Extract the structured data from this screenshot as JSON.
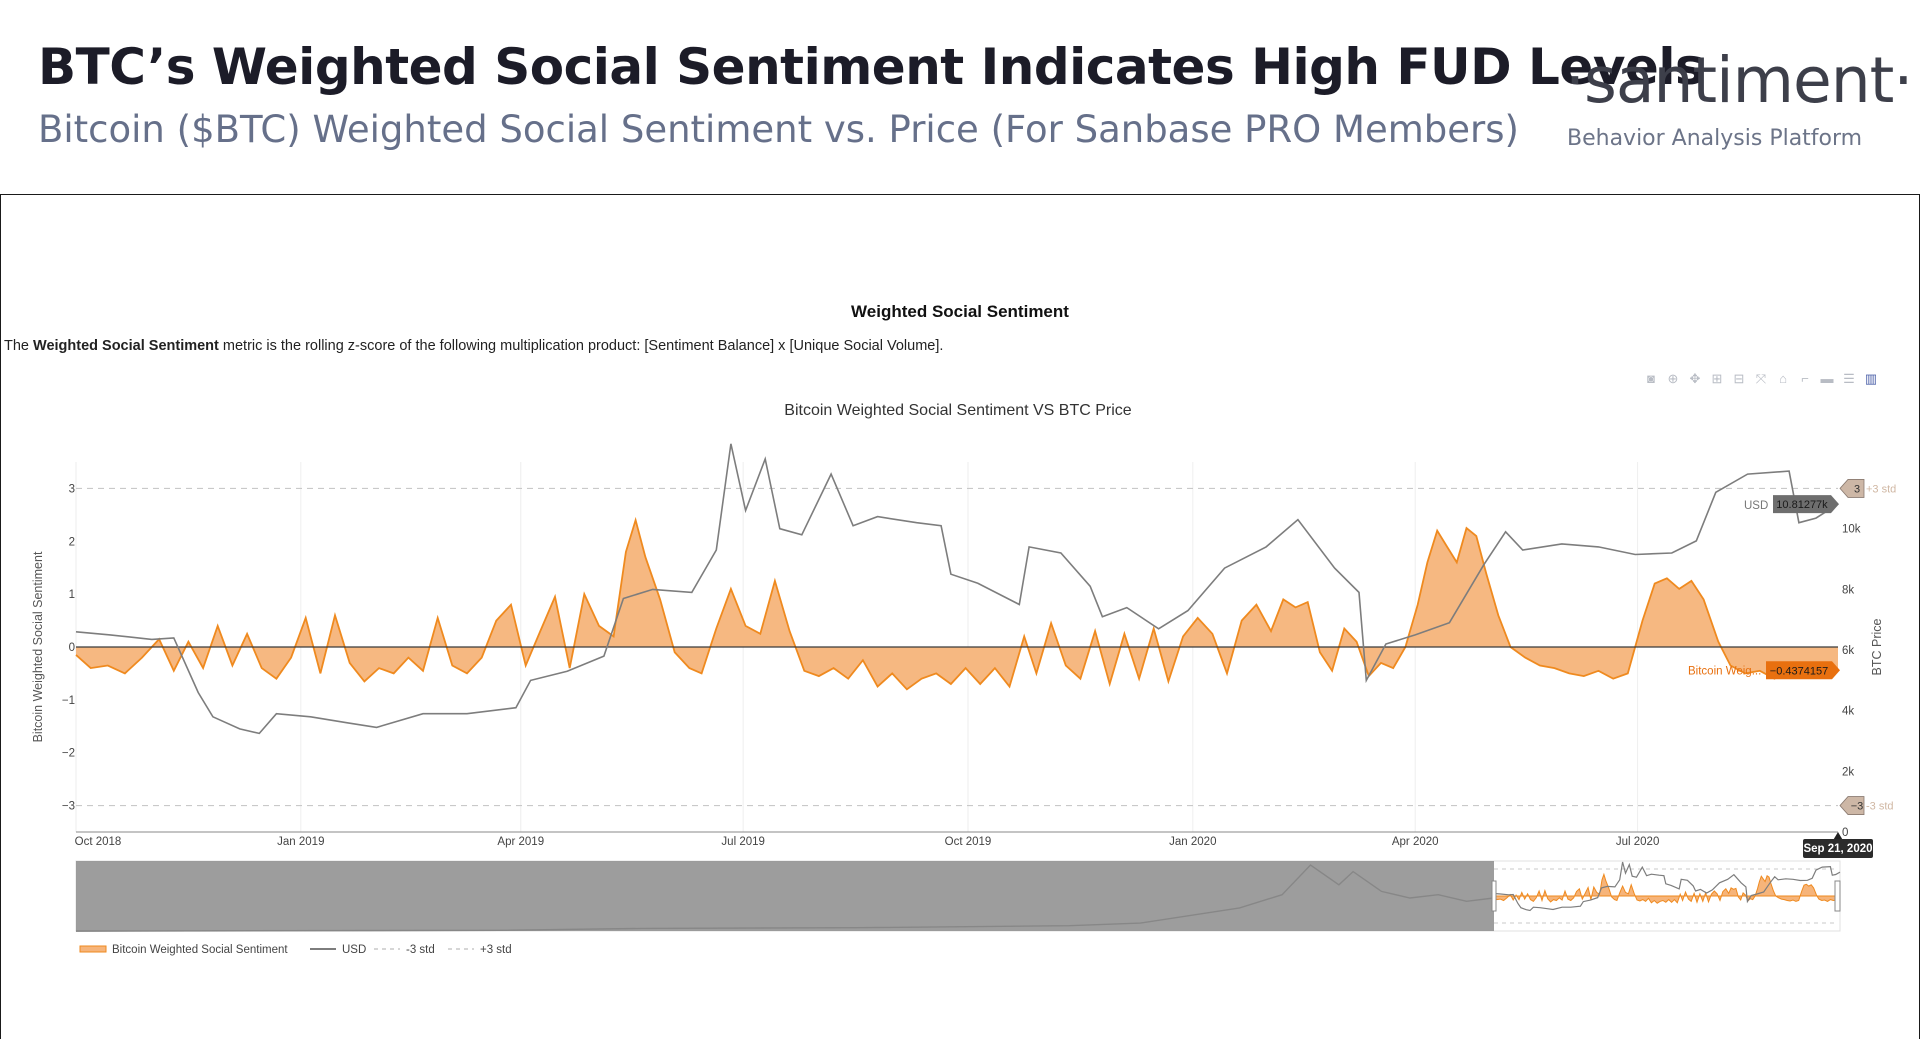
{
  "header": {
    "title": "BTC’s Weighted Social Sentiment Indicates High FUD Levels",
    "subtitle": "Bitcoin ($BTC) Weighted Social Sentiment vs. Price (For Sanbase PRO Members)",
    "logo": "·santiment·",
    "logo_tagline": "Behavior Analysis Platform"
  },
  "section": {
    "title": "Weighted Social Sentiment",
    "desc_prefix": "The ",
    "desc_bold": "Weighted Social Sentiment",
    "desc_rest": " metric is the rolling z-score of the following multiplication product: [Sentiment Balance] x [Unique Social Volume]."
  },
  "modebar": [
    {
      "icon": "camera-icon",
      "glyph": "◙"
    },
    {
      "icon": "zoom-icon",
      "glyph": "⊕"
    },
    {
      "icon": "pan-icon",
      "glyph": "✥"
    },
    {
      "icon": "zoom-in-icon",
      "glyph": "⊞"
    },
    {
      "icon": "zoom-out-icon",
      "glyph": "⊟"
    },
    {
      "icon": "autoscale-icon",
      "glyph": "⤧"
    },
    {
      "icon": "reset-axes-icon",
      "glyph": "⌂"
    },
    {
      "icon": "spike-lines-icon",
      "glyph": "⌐"
    },
    {
      "icon": "hover-closest-icon",
      "glyph": "▬"
    },
    {
      "icon": "hover-compare-icon",
      "glyph": "☰"
    },
    {
      "icon": "plotly-logo-icon",
      "glyph": "▥"
    }
  ],
  "colors": {
    "sentiment_fill": "#f6b47a",
    "sentiment_line": "#ef8a1f",
    "price_line": "#7d7d7d",
    "std_line": "#c9c9c9",
    "hover_price_bg": "#6e6e6e",
    "hover_sent_bg": "#e8700f",
    "title_text": "#1c1c28",
    "subtitle_text": "#66708a"
  },
  "chart_data": {
    "type": "line",
    "title": "Bitcoin Weighted Social Sentiment VS BTC Price",
    "ylabel": "Bitcoin Weighted Social Sentiment",
    "y2label": "BTC Price",
    "ylim": [
      -3.5,
      3.5
    ],
    "y2lim": [
      0,
      12200
    ],
    "yticks": [
      "3",
      "2",
      "1",
      "0",
      "−1",
      "−2",
      "−3"
    ],
    "y2ticks": [
      "10k",
      "8k",
      "6k",
      "4k",
      "2k",
      "0"
    ],
    "xticks": [
      "Oct 2018",
      "Jan 2019",
      "Apr 2019",
      "Jul 2019",
      "Oct 2019",
      "Jan 2020",
      "Apr 2020",
      "Jul 2020"
    ],
    "x_range": [
      "2018-10-01",
      "2020-09-21"
    ],
    "grid": true,
    "legend_position": "bottom-left",
    "std_lines": [
      {
        "name": "+3 std",
        "value": 3,
        "tag": "3",
        "label": "+3 std"
      },
      {
        "name": "-3 std",
        "value": -3,
        "tag": "−3",
        "label": "-3 std"
      }
    ],
    "hover": {
      "date": "Sep 21, 2020",
      "price_label": "USD",
      "price_value": "10.81277k",
      "sentiment_label": "Bitcoin Weig...",
      "sentiment_value": "−0.4374157"
    },
    "series": [
      {
        "name": "Bitcoin Weighted Social Sentiment",
        "points": [
          [
            "2018-10-01",
            -0.15
          ],
          [
            "2018-10-07",
            -0.4
          ],
          [
            "2018-10-14",
            -0.35
          ],
          [
            "2018-10-21",
            -0.5
          ],
          [
            "2018-10-28",
            -0.2
          ],
          [
            "2018-11-04",
            0.15
          ],
          [
            "2018-11-10",
            -0.45
          ],
          [
            "2018-11-16",
            0.1
          ],
          [
            "2018-11-22",
            -0.4
          ],
          [
            "2018-11-28",
            0.4
          ],
          [
            "2018-12-04",
            -0.35
          ],
          [
            "2018-12-10",
            0.25
          ],
          [
            "2018-12-16",
            -0.4
          ],
          [
            "2018-12-22",
            -0.6
          ],
          [
            "2018-12-28",
            -0.2
          ],
          [
            "2019-01-03",
            0.55
          ],
          [
            "2019-01-09",
            -0.5
          ],
          [
            "2019-01-15",
            0.6
          ],
          [
            "2019-01-21",
            -0.3
          ],
          [
            "2019-01-27",
            -0.65
          ],
          [
            "2019-02-02",
            -0.4
          ],
          [
            "2019-02-08",
            -0.5
          ],
          [
            "2019-02-14",
            -0.2
          ],
          [
            "2019-02-20",
            -0.45
          ],
          [
            "2019-02-26",
            0.55
          ],
          [
            "2019-03-04",
            -0.35
          ],
          [
            "2019-03-10",
            -0.5
          ],
          [
            "2019-03-16",
            -0.2
          ],
          [
            "2019-03-22",
            0.5
          ],
          [
            "2019-03-28",
            0.8
          ],
          [
            "2019-04-03",
            -0.35
          ],
          [
            "2019-04-09",
            0.3
          ],
          [
            "2019-04-15",
            0.95
          ],
          [
            "2019-04-21",
            -0.4
          ],
          [
            "2019-04-27",
            1.0
          ],
          [
            "2019-05-03",
            0.4
          ],
          [
            "2019-05-09",
            0.2
          ],
          [
            "2019-05-14",
            1.8
          ],
          [
            "2019-05-18",
            2.4
          ],
          [
            "2019-05-22",
            1.7
          ],
          [
            "2019-05-28",
            0.9
          ],
          [
            "2019-06-03",
            -0.1
          ],
          [
            "2019-06-09",
            -0.4
          ],
          [
            "2019-06-14",
            -0.5
          ],
          [
            "2019-06-20",
            0.35
          ],
          [
            "2019-06-26",
            1.1
          ],
          [
            "2019-07-02",
            0.4
          ],
          [
            "2019-07-08",
            0.25
          ],
          [
            "2019-07-14",
            1.25
          ],
          [
            "2019-07-20",
            0.3
          ],
          [
            "2019-07-26",
            -0.45
          ],
          [
            "2019-08-01",
            -0.55
          ],
          [
            "2019-08-07",
            -0.4
          ],
          [
            "2019-08-13",
            -0.6
          ],
          [
            "2019-08-19",
            -0.25
          ],
          [
            "2019-08-25",
            -0.75
          ],
          [
            "2019-08-31",
            -0.5
          ],
          [
            "2019-09-06",
            -0.8
          ],
          [
            "2019-09-12",
            -0.6
          ],
          [
            "2019-09-18",
            -0.5
          ],
          [
            "2019-09-24",
            -0.7
          ],
          [
            "2019-09-30",
            -0.4
          ],
          [
            "2019-10-06",
            -0.7
          ],
          [
            "2019-10-12",
            -0.4
          ],
          [
            "2019-10-18",
            -0.75
          ],
          [
            "2019-10-24",
            0.2
          ],
          [
            "2019-10-29",
            -0.5
          ],
          [
            "2019-11-04",
            0.45
          ],
          [
            "2019-11-10",
            -0.35
          ],
          [
            "2019-11-16",
            -0.6
          ],
          [
            "2019-11-22",
            0.3
          ],
          [
            "2019-11-28",
            -0.7
          ],
          [
            "2019-12-04",
            0.25
          ],
          [
            "2019-12-10",
            -0.6
          ],
          [
            "2019-12-16",
            0.35
          ],
          [
            "2019-12-22",
            -0.65
          ],
          [
            "2019-12-28",
            0.2
          ],
          [
            "2020-01-03",
            0.55
          ],
          [
            "2020-01-09",
            0.25
          ],
          [
            "2020-01-15",
            -0.5
          ],
          [
            "2020-01-21",
            0.5
          ],
          [
            "2020-01-27",
            0.8
          ],
          [
            "2020-02-02",
            0.3
          ],
          [
            "2020-02-07",
            0.9
          ],
          [
            "2020-02-12",
            0.75
          ],
          [
            "2020-02-17",
            0.85
          ],
          [
            "2020-02-22",
            -0.1
          ],
          [
            "2020-02-27",
            -0.45
          ],
          [
            "2020-03-03",
            0.35
          ],
          [
            "2020-03-08",
            0.1
          ],
          [
            "2020-03-13",
            -0.55
          ],
          [
            "2020-03-18",
            -0.3
          ],
          [
            "2020-03-23",
            -0.4
          ],
          [
            "2020-03-28",
            0.0
          ],
          [
            "2020-04-02",
            0.8
          ],
          [
            "2020-04-06",
            1.6
          ],
          [
            "2020-04-10",
            2.2
          ],
          [
            "2020-04-14",
            1.9
          ],
          [
            "2020-04-18",
            1.6
          ],
          [
            "2020-04-22",
            2.25
          ],
          [
            "2020-04-26",
            2.1
          ],
          [
            "2020-04-30",
            1.4
          ],
          [
            "2020-05-05",
            0.6
          ],
          [
            "2020-05-10",
            0.0
          ],
          [
            "2020-05-16",
            -0.2
          ],
          [
            "2020-05-22",
            -0.35
          ],
          [
            "2020-05-28",
            -0.4
          ],
          [
            "2020-06-03",
            -0.5
          ],
          [
            "2020-06-09",
            -0.55
          ],
          [
            "2020-06-15",
            -0.45
          ],
          [
            "2020-06-21",
            -0.6
          ],
          [
            "2020-06-27",
            -0.5
          ],
          [
            "2020-07-03",
            0.5
          ],
          [
            "2020-07-08",
            1.2
          ],
          [
            "2020-07-13",
            1.3
          ],
          [
            "2020-07-18",
            1.1
          ],
          [
            "2020-07-23",
            1.25
          ],
          [
            "2020-07-28",
            0.9
          ],
          [
            "2020-08-03",
            0.1
          ],
          [
            "2020-08-08",
            -0.35
          ],
          [
            "2020-08-14",
            -0.5
          ],
          [
            "2020-08-20",
            -0.45
          ],
          [
            "2020-08-26",
            -0.6
          ],
          [
            "2020-09-01",
            -0.4
          ],
          [
            "2020-09-07",
            -0.5
          ],
          [
            "2020-09-14",
            -0.45
          ],
          [
            "2020-09-21",
            -0.44
          ]
        ]
      },
      {
        "name": "USD",
        "points": [
          [
            "2018-10-01",
            6600
          ],
          [
            "2018-10-15",
            6500
          ],
          [
            "2018-11-01",
            6350
          ],
          [
            "2018-11-10",
            6400
          ],
          [
            "2018-11-20",
            4600
          ],
          [
            "2018-11-26",
            3800
          ],
          [
            "2018-12-07",
            3400
          ],
          [
            "2018-12-15",
            3250
          ],
          [
            "2018-12-22",
            3900
          ],
          [
            "2019-01-05",
            3800
          ],
          [
            "2019-01-20",
            3600
          ],
          [
            "2019-02-01",
            3450
          ],
          [
            "2019-02-20",
            3900
          ],
          [
            "2019-03-10",
            3900
          ],
          [
            "2019-03-30",
            4100
          ],
          [
            "2019-04-05",
            5000
          ],
          [
            "2019-04-20",
            5300
          ],
          [
            "2019-05-05",
            5800
          ],
          [
            "2019-05-13",
            7700
          ],
          [
            "2019-05-25",
            8000
          ],
          [
            "2019-06-10",
            7900
          ],
          [
            "2019-06-20",
            9300
          ],
          [
            "2019-06-26",
            12800
          ],
          [
            "2019-07-02",
            10600
          ],
          [
            "2019-07-10",
            12300
          ],
          [
            "2019-07-16",
            10000
          ],
          [
            "2019-07-25",
            9800
          ],
          [
            "2019-08-06",
            11800
          ],
          [
            "2019-08-15",
            10100
          ],
          [
            "2019-08-25",
            10400
          ],
          [
            "2019-09-10",
            10200
          ],
          [
            "2019-09-20",
            10100
          ],
          [
            "2019-09-24",
            8500
          ],
          [
            "2019-10-05",
            8200
          ],
          [
            "2019-10-22",
            7500
          ],
          [
            "2019-10-26",
            9400
          ],
          [
            "2019-11-08",
            9200
          ],
          [
            "2019-11-20",
            8100
          ],
          [
            "2019-11-25",
            7100
          ],
          [
            "2019-12-05",
            7400
          ],
          [
            "2019-12-18",
            6700
          ],
          [
            "2019-12-30",
            7300
          ],
          [
            "2020-01-14",
            8700
          ],
          [
            "2020-01-31",
            9400
          ],
          [
            "2020-02-13",
            10300
          ],
          [
            "2020-02-28",
            8700
          ],
          [
            "2020-03-09",
            7900
          ],
          [
            "2020-03-12",
            5000
          ],
          [
            "2020-03-20",
            6200
          ],
          [
            "2020-04-01",
            6500
          ],
          [
            "2020-04-15",
            6900
          ],
          [
            "2020-04-29",
            8800
          ],
          [
            "2020-05-08",
            9900
          ],
          [
            "2020-05-15",
            9300
          ],
          [
            "2020-05-31",
            9500
          ],
          [
            "2020-06-15",
            9400
          ],
          [
            "2020-06-30",
            9150
          ],
          [
            "2020-07-15",
            9200
          ],
          [
            "2020-07-25",
            9600
          ],
          [
            "2020-08-02",
            11200
          ],
          [
            "2020-08-15",
            11800
          ],
          [
            "2020-09-01",
            11900
          ],
          [
            "2020-09-05",
            10200
          ],
          [
            "2020-09-12",
            10350
          ],
          [
            "2020-09-21",
            10813
          ]
        ]
      }
    ],
    "legend": [
      "Bitcoin Weighted Social Sentiment",
      "USD",
      "-3 std",
      "+3 std"
    ]
  }
}
